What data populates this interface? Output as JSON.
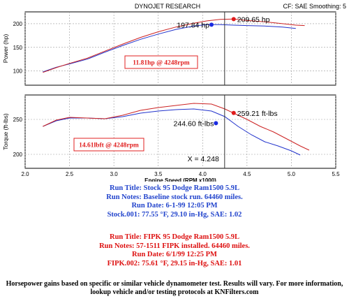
{
  "header": {
    "title": "DYNOJET RESEARCH",
    "settings": "CF: SAE  Smoothing: 5"
  },
  "chart_data": [
    {
      "type": "line",
      "title": "",
      "xlabel": "Engine Speed (RPM x1000)",
      "ylabel": "Power (hp)",
      "xlim": [
        2.0,
        5.5
      ],
      "ylim": [
        70,
        225
      ],
      "yticks": [
        100,
        150,
        200
      ],
      "grid": true,
      "series": [
        {
          "name": "Stock.001",
          "color": "#2233cc",
          "x": [
            2.2,
            2.35,
            2.5,
            2.7,
            2.9,
            3.1,
            3.3,
            3.5,
            3.7,
            3.9,
            4.05,
            4.2,
            4.35,
            4.5,
            4.7,
            4.9,
            5.05
          ],
          "y": [
            98,
            108,
            115,
            125,
            140,
            154,
            167,
            178,
            188,
            195,
            198,
            198,
            197,
            196,
            195,
            193,
            190
          ]
        },
        {
          "name": "FIPK.002",
          "color": "#cc2222",
          "x": [
            2.2,
            2.35,
            2.5,
            2.7,
            2.9,
            3.1,
            3.3,
            3.5,
            3.7,
            3.9,
            4.05,
            4.2,
            4.35,
            4.5,
            4.7,
            4.9,
            5.05,
            5.15
          ],
          "y": [
            97,
            107,
            116,
            127,
            142,
            157,
            171,
            183,
            193,
            201,
            206,
            209,
            210,
            207,
            204,
            200,
            197,
            196
          ]
        }
      ],
      "annotations": {
        "stock_peak": {
          "x": 4.1,
          "y": 197.84,
          "label": "197.84 hp"
        },
        "fipk_peak": {
          "x": 4.35,
          "y": 209.65,
          "label": "209.65 hp"
        },
        "gain_box": "11.81hp @ 4248rpm",
        "cursor_x": 4.248
      }
    },
    {
      "type": "line",
      "title": "",
      "xlabel": "Engine Speed (RPM x1000)",
      "ylabel": "Torque (ft-lbs)",
      "xlim": [
        2.0,
        5.5
      ],
      "ylim": [
        180,
        285
      ],
      "yticks": [
        200,
        250
      ],
      "xticks": [
        2.0,
        2.5,
        3.0,
        3.5,
        4.0,
        4.5,
        5.0,
        5.5
      ],
      "grid": true,
      "series": [
        {
          "name": "Stock.001",
          "color": "#2233cc",
          "x": [
            2.2,
            2.35,
            2.5,
            2.7,
            2.9,
            3.1,
            3.3,
            3.5,
            3.7,
            3.9,
            4.1,
            4.25,
            4.4,
            4.55,
            4.7,
            4.85,
            5.0,
            5.1
          ],
          "y": [
            240,
            248,
            252,
            252,
            251,
            254,
            259,
            262,
            264,
            265,
            262,
            254,
            240,
            228,
            218,
            212,
            205,
            199
          ]
        },
        {
          "name": "FIPK.002",
          "color": "#cc2222",
          "x": [
            2.2,
            2.35,
            2.5,
            2.7,
            2.9,
            3.1,
            3.3,
            3.5,
            3.7,
            3.9,
            4.1,
            4.25,
            4.35,
            4.5,
            4.65,
            4.8,
            4.95,
            5.1,
            5.2
          ],
          "y": [
            240,
            249,
            253,
            252,
            251,
            256,
            263,
            267,
            270,
            273,
            272,
            265,
            259,
            250,
            240,
            232,
            222,
            212,
            206
          ]
        }
      ],
      "annotations": {
        "stock_peak": {
          "x": 4.15,
          "y": 244.6,
          "label": "244.60 ft-lbs"
        },
        "fipk_peak": {
          "x": 4.35,
          "y": 259.21,
          "label": "259.21 ft-lbs"
        },
        "gain_box": "14.61lbft @ 4248rpm",
        "cursor_label": "X = 4.248",
        "cursor_x": 4.248
      }
    }
  ],
  "run_info": {
    "stock": {
      "color": "#2244cc",
      "lines": [
        "Run Title: Stock 95 Dodge Ram1500 5.9L",
        "Run Notes: Baseline stock run. 64460 miles.",
        "Run Date: 6-1-99 12:05 PM",
        "Stock.001: 77.55 °F, 29.10 in-Hg, SAE: 1.02"
      ]
    },
    "fipk": {
      "color": "#dd1111",
      "lines": [
        "Run Title: FIPK 95 Dodge Ram1500 5.9L",
        "Run Notes: 57-1511 FIPK installed. 64460 miles.",
        "Run Date: 6/1/99 12:25 PM",
        "FIPK.002: 75.61 °F, 29.15 in-Hg, SAE: 1.01"
      ]
    }
  },
  "footnote": "Horsepower gains based on specific or similar vehicle dynamometer test. Results will vary. For more information, lookup vehicle and/or testing protocols at KNFilters.com"
}
